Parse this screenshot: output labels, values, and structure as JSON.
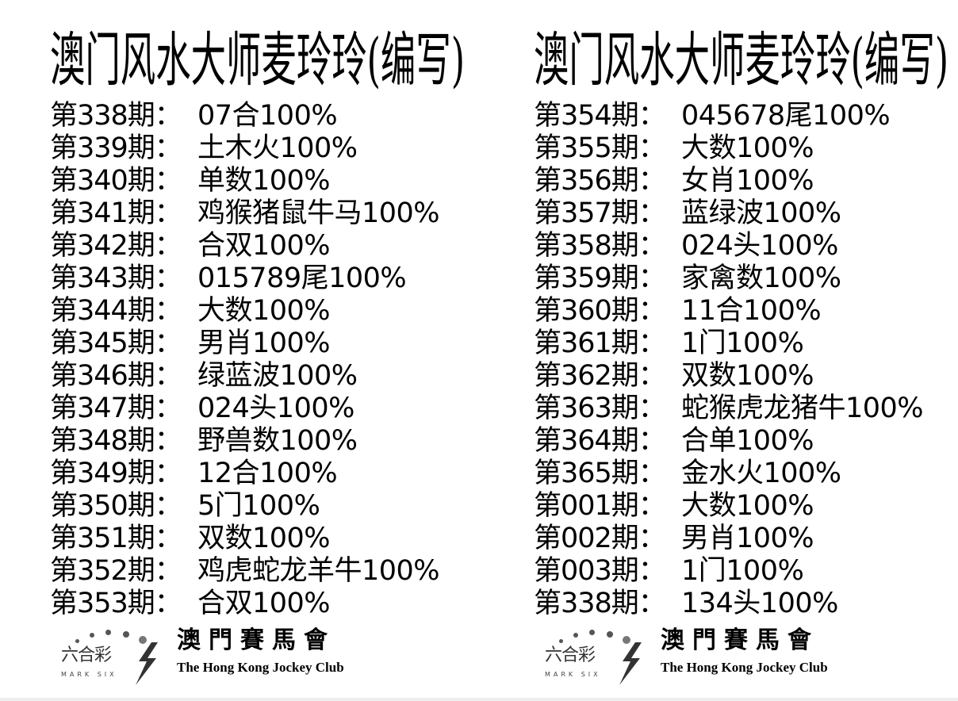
{
  "columns": [
    {
      "title": "澳门风水大师麦玲玲(编写)",
      "rows": [
        {
          "label": "第338期：",
          "value": "07合100%"
        },
        {
          "label": "第339期：",
          "value": "土木火100%"
        },
        {
          "label": "第340期：",
          "value": "单数100%"
        },
        {
          "label": "第341期：",
          "value": "鸡猴猪鼠牛马100%"
        },
        {
          "label": "第342期：",
          "value": "合双100%"
        },
        {
          "label": "第343期：",
          "value": "015789尾100%"
        },
        {
          "label": "第344期：",
          "value": "大数100%"
        },
        {
          "label": "第345期：",
          "value": "男肖100%"
        },
        {
          "label": "第346期：",
          "value": "绿蓝波100%"
        },
        {
          "label": "第347期：",
          "value": "024头100%"
        },
        {
          "label": "第348期：",
          "value": "野兽数100%"
        },
        {
          "label": "第349期：",
          "value": "12合100%"
        },
        {
          "label": "第350期：",
          "value": "5门100%"
        },
        {
          "label": "第351期：",
          "value": "双数100%"
        },
        {
          "label": "第352期：",
          "value": "鸡虎蛇龙羊牛100%"
        },
        {
          "label": "第353期：",
          "value": "合双100%"
        }
      ]
    },
    {
      "title": "澳门风水大师麦玲玲(编写)",
      "rows": [
        {
          "label": "第354期：",
          "value": "045678尾100%"
        },
        {
          "label": "第355期：",
          "value": "大数100%"
        },
        {
          "label": "第356期：",
          "value": "女肖100%"
        },
        {
          "label": "第357期：",
          "value": "蓝绿波100%"
        },
        {
          "label": "第358期：",
          "value": "024头100%"
        },
        {
          "label": "第359期：",
          "value": "家禽数100%"
        },
        {
          "label": "第360期：",
          "value": "11合100%"
        },
        {
          "label": "第361期：",
          "value": "1门100%"
        },
        {
          "label": "第362期：",
          "value": "双数100%"
        },
        {
          "label": "第363期：",
          "value": "蛇猴虎龙猪牛100%"
        },
        {
          "label": "第364期：",
          "value": "合单100%"
        },
        {
          "label": "第365期：",
          "value": "金水火100%"
        },
        {
          "label": "第001期：",
          "value": "大数100%"
        },
        {
          "label": "第002期：",
          "value": "男肖100%"
        },
        {
          "label": "第003期：",
          "value": "1门100%"
        },
        {
          "label": "第338期：",
          "value": "134头100%"
        }
      ]
    }
  ],
  "logo": {
    "mark_six_cn": "六合彩",
    "mark_six_en": "MARK SIX",
    "club_cn": "澳門賽馬會",
    "club_en": "The Hong Kong Jockey Club"
  }
}
